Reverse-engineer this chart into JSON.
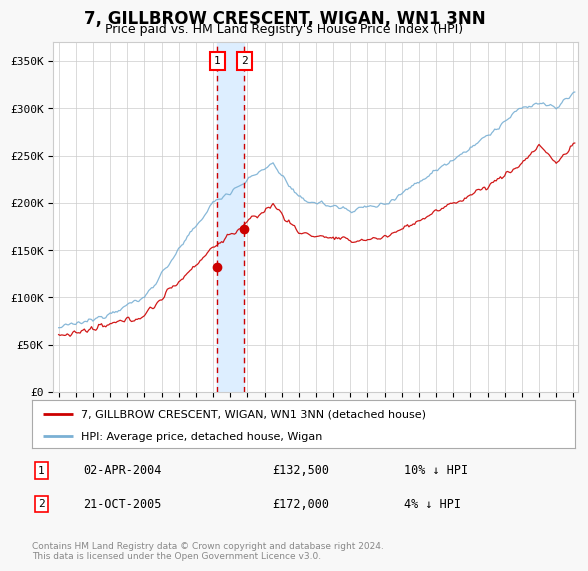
{
  "title": "7, GILLBROW CRESCENT, WIGAN, WN1 3NN",
  "subtitle": "Price paid vs. HM Land Registry's House Price Index (HPI)",
  "ylim": [
    0,
    370000
  ],
  "xlim_start": 1994.7,
  "xlim_end": 2025.3,
  "transaction1_date": 2004.25,
  "transaction1_price": 132500,
  "transaction2_date": 2005.83,
  "transaction2_price": 172000,
  "red_line_color": "#cc0000",
  "blue_line_color": "#7ab0d4",
  "shading_color": "#ddeeff",
  "grid_color": "#cccccc",
  "background_color": "#f8f8f8",
  "plot_bg_color": "#ffffff",
  "legend_line1": "7, GILLBROW CRESCENT, WIGAN, WN1 3NN (detached house)",
  "legend_line2": "HPI: Average price, detached house, Wigan",
  "table_row1": [
    "1",
    "02-APR-2004",
    "£132,500",
    "10% ↓ HPI"
  ],
  "table_row2": [
    "2",
    "21-OCT-2005",
    "£172,000",
    "4% ↓ HPI"
  ],
  "footer": "Contains HM Land Registry data © Crown copyright and database right 2024.\nThis data is licensed under the Open Government Licence v3.0.",
  "title_fontsize": 12,
  "subtitle_fontsize": 9
}
